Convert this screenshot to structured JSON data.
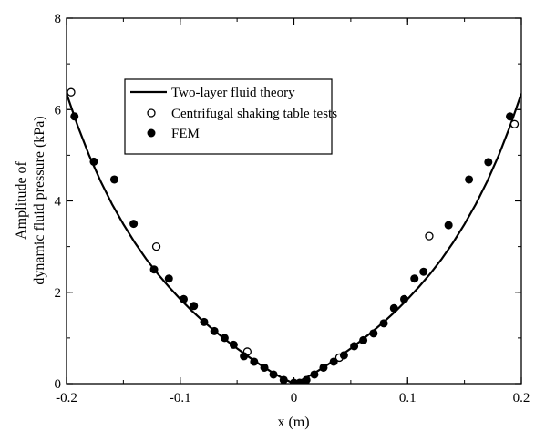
{
  "chart_data": {
    "type": "scatter",
    "xlabel": "x (m)",
    "ylabel": [
      "Amplitude of",
      "dynamic fluid pressure (kPa)"
    ],
    "xlim": [
      -0.2,
      0.2
    ],
    "ylim": [
      0,
      8
    ],
    "x_ticks": [
      "-0.2",
      "-0.1",
      "0",
      "0.1",
      "0.2"
    ],
    "y_ticks": [
      "0",
      "2",
      "4",
      "6",
      "8"
    ],
    "grid": false,
    "legend_position": "top-left",
    "series": [
      {
        "name": "Two-layer fluid theory",
        "kind": "line",
        "color": "#000000",
        "x": [
          -0.2,
          -0.19,
          -0.18,
          -0.17,
          -0.16,
          -0.15,
          -0.14,
          -0.13,
          -0.12,
          -0.11,
          -0.1,
          -0.09,
          -0.08,
          -0.07,
          -0.06,
          -0.05,
          -0.04,
          -0.03,
          -0.02,
          -0.01,
          0,
          0.01,
          0.02,
          0.03,
          0.04,
          0.05,
          0.06,
          0.07,
          0.08,
          0.09,
          0.1,
          0.11,
          0.12,
          0.13,
          0.14,
          0.15,
          0.16,
          0.17,
          0.18,
          0.19,
          0.2
        ],
        "y": [
          6.35,
          5.63,
          4.99,
          4.43,
          3.93,
          3.49,
          3.09,
          2.73,
          2.41,
          2.12,
          1.85,
          1.6,
          1.37,
          1.16,
          0.96,
          0.77,
          0.59,
          0.42,
          0.26,
          0.12,
          0.0,
          0.12,
          0.26,
          0.42,
          0.59,
          0.77,
          0.96,
          1.16,
          1.37,
          1.6,
          1.85,
          2.12,
          2.41,
          2.73,
          3.09,
          3.49,
          3.93,
          4.43,
          4.99,
          5.63,
          6.35
        ]
      },
      {
        "name": "Centrifugal shaking table tests",
        "kind": "open-marker",
        "color": "#000000",
        "x": [
          -0.196,
          -0.121,
          -0.041,
          0.04,
          0.119,
          0.194
        ],
        "y": [
          6.38,
          3.0,
          0.7,
          0.57,
          3.23,
          5.68
        ]
      },
      {
        "name": "FEM",
        "kind": "filled-marker",
        "color": "#000000",
        "x": [
          -0.193,
          -0.176,
          -0.158,
          -0.141,
          -0.123,
          -0.11,
          -0.097,
          -0.088,
          -0.079,
          -0.07,
          -0.061,
          -0.053,
          -0.044,
          -0.035,
          -0.026,
          -0.018,
          -0.009,
          0.0,
          0.005,
          0.011,
          0.018,
          0.026,
          0.035,
          0.044,
          0.053,
          0.061,
          0.07,
          0.079,
          0.088,
          0.097,
          0.106,
          0.114,
          0.136,
          0.154,
          0.171,
          0.19
        ],
        "y": [
          5.85,
          4.86,
          4.47,
          3.5,
          2.5,
          2.3,
          1.85,
          1.7,
          1.35,
          1.15,
          1.0,
          0.85,
          0.6,
          0.48,
          0.35,
          0.2,
          0.08,
          0.02,
          0.02,
          0.08,
          0.2,
          0.35,
          0.48,
          0.62,
          0.82,
          0.95,
          1.1,
          1.32,
          1.65,
          1.85,
          2.3,
          2.45,
          3.47,
          4.47,
          4.85,
          5.85
        ]
      }
    ]
  }
}
